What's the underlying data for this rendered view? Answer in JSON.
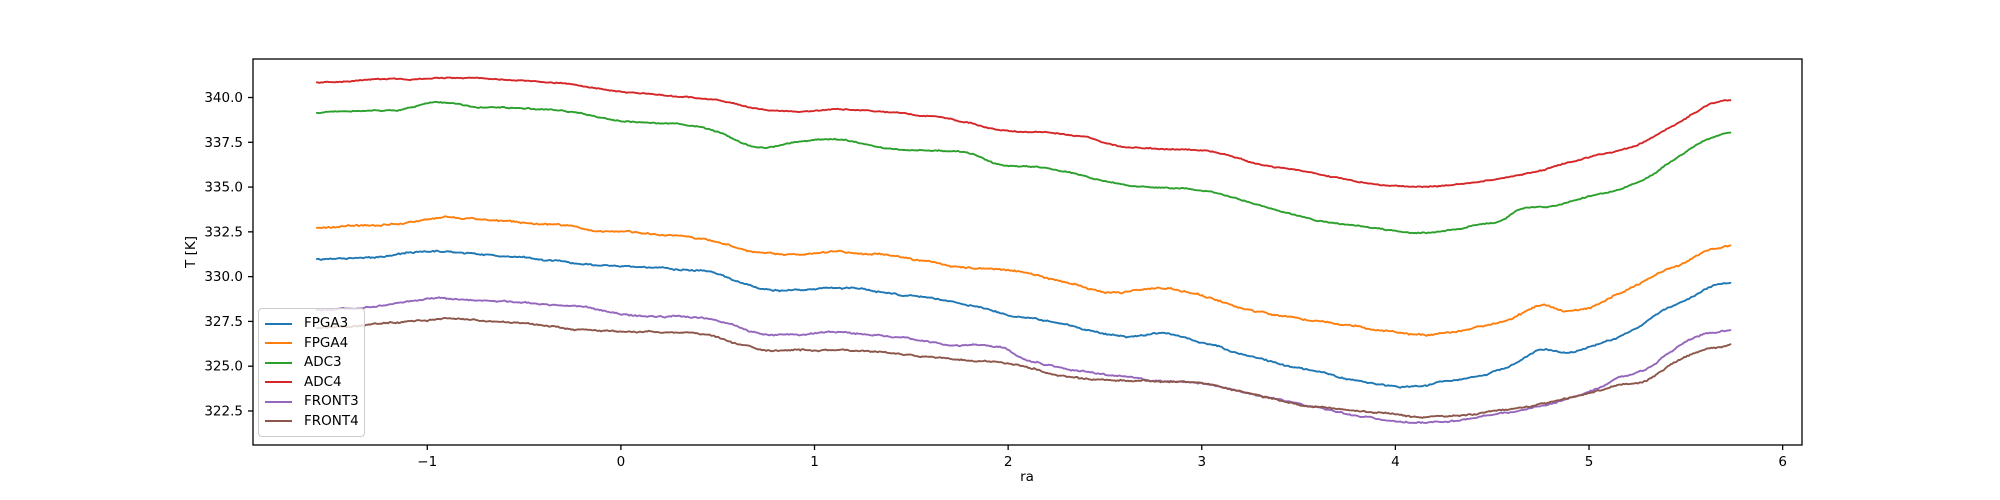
{
  "chart_data": {
    "type": "line",
    "title": "",
    "xlabel": "ra",
    "ylabel": "T [K]",
    "xlim": [
      -1.9,
      6.1
    ],
    "ylim": [
      320.6,
      342.15
    ],
    "xticks": [
      -1,
      0,
      1,
      2,
      3,
      4,
      5,
      6
    ],
    "yticks": [
      322.5,
      325.0,
      327.5,
      330.0,
      332.5,
      335.0,
      337.5,
      340.0
    ],
    "grid": false,
    "legend_position": "lower left",
    "x_data_range": [
      -1.57,
      5.73
    ],
    "axis_color": "#000000",
    "series": [
      {
        "name": "FPGA3",
        "color": "#1f77b4",
        "noise": 0.055,
        "anchors": [
          [
            -1.57,
            330.95
          ],
          [
            -1.3,
            331.1
          ],
          [
            -0.95,
            331.4
          ],
          [
            -0.65,
            331.2
          ],
          [
            -0.35,
            330.9
          ],
          [
            -0.1,
            330.6
          ],
          [
            0.15,
            330.5
          ],
          [
            0.45,
            330.25
          ],
          [
            0.7,
            329.35
          ],
          [
            0.9,
            329.2
          ],
          [
            1.1,
            329.35
          ],
          [
            1.4,
            329.1
          ],
          [
            1.7,
            328.6
          ],
          [
            2.0,
            327.9
          ],
          [
            2.3,
            327.3
          ],
          [
            2.6,
            326.65
          ],
          [
            2.8,
            326.85
          ],
          [
            3.0,
            326.35
          ],
          [
            3.3,
            325.4
          ],
          [
            3.6,
            324.65
          ],
          [
            3.85,
            324.1
          ],
          [
            4.05,
            323.9
          ],
          [
            4.25,
            324.15
          ],
          [
            4.45,
            324.5
          ],
          [
            4.6,
            325.05
          ],
          [
            4.75,
            325.9
          ],
          [
            4.87,
            325.7
          ],
          [
            5.0,
            326.0
          ],
          [
            5.2,
            326.85
          ],
          [
            5.35,
            327.9
          ],
          [
            5.5,
            328.7
          ],
          [
            5.62,
            329.4
          ],
          [
            5.73,
            329.65
          ]
        ]
      },
      {
        "name": "FPGA4",
        "color": "#ff7f0e",
        "noise": 0.06,
        "anchors": [
          [
            -1.57,
            332.7
          ],
          [
            -1.35,
            332.8
          ],
          [
            -1.15,
            332.95
          ],
          [
            -0.9,
            333.3
          ],
          [
            -0.65,
            333.1
          ],
          [
            -0.4,
            332.9
          ],
          [
            -0.15,
            332.6
          ],
          [
            0.1,
            332.45
          ],
          [
            0.45,
            332.05
          ],
          [
            0.7,
            331.4
          ],
          [
            0.9,
            331.2
          ],
          [
            1.1,
            331.35
          ],
          [
            1.4,
            331.1
          ],
          [
            1.7,
            330.6
          ],
          [
            2.0,
            330.3
          ],
          [
            2.3,
            329.7
          ],
          [
            2.55,
            329.15
          ],
          [
            2.8,
            329.3
          ],
          [
            3.0,
            328.9
          ],
          [
            3.3,
            328.0
          ],
          [
            3.6,
            327.5
          ],
          [
            3.9,
            327.05
          ],
          [
            4.15,
            326.8
          ],
          [
            4.45,
            327.2
          ],
          [
            4.62,
            327.7
          ],
          [
            4.75,
            328.4
          ],
          [
            4.87,
            328.15
          ],
          [
            5.0,
            328.3
          ],
          [
            5.15,
            329.0
          ],
          [
            5.3,
            329.85
          ],
          [
            5.45,
            330.6
          ],
          [
            5.6,
            331.4
          ],
          [
            5.73,
            331.7
          ]
        ]
      },
      {
        "name": "ADC3",
        "color": "#2ca02c",
        "noise": 0.04,
        "anchors": [
          [
            -1.57,
            339.15
          ],
          [
            -1.35,
            339.25
          ],
          [
            -1.15,
            339.3
          ],
          [
            -0.95,
            339.7
          ],
          [
            -0.75,
            339.5
          ],
          [
            -0.5,
            339.4
          ],
          [
            -0.25,
            339.2
          ],
          [
            0.0,
            338.7
          ],
          [
            0.3,
            338.55
          ],
          [
            0.5,
            338.1
          ],
          [
            0.7,
            337.25
          ],
          [
            0.9,
            337.5
          ],
          [
            1.1,
            337.7
          ],
          [
            1.35,
            337.2
          ],
          [
            1.65,
            337.05
          ],
          [
            1.8,
            336.9
          ],
          [
            1.95,
            336.25
          ],
          [
            2.15,
            336.1
          ],
          [
            2.35,
            335.75
          ],
          [
            2.55,
            335.2
          ],
          [
            2.8,
            334.95
          ],
          [
            3.05,
            334.75
          ],
          [
            3.3,
            334.0
          ],
          [
            3.6,
            333.15
          ],
          [
            3.9,
            332.7
          ],
          [
            4.15,
            332.45
          ],
          [
            4.45,
            332.9
          ],
          [
            4.55,
            333.15
          ],
          [
            4.65,
            333.8
          ],
          [
            4.8,
            333.95
          ],
          [
            5.0,
            334.45
          ],
          [
            5.15,
            334.8
          ],
          [
            5.3,
            335.5
          ],
          [
            5.45,
            336.6
          ],
          [
            5.6,
            337.6
          ],
          [
            5.73,
            338.0
          ]
        ]
      },
      {
        "name": "ADC4",
        "color": "#d62728",
        "noise": 0.04,
        "anchors": [
          [
            -1.57,
            340.85
          ],
          [
            -1.3,
            340.95
          ],
          [
            -1.0,
            341.05
          ],
          [
            -0.85,
            341.1
          ],
          [
            -0.6,
            341.0
          ],
          [
            -0.3,
            340.8
          ],
          [
            0.0,
            340.3
          ],
          [
            0.3,
            340.05
          ],
          [
            0.55,
            339.75
          ],
          [
            0.7,
            339.35
          ],
          [
            0.9,
            339.25
          ],
          [
            1.1,
            339.35
          ],
          [
            1.35,
            339.2
          ],
          [
            1.65,
            338.9
          ],
          [
            1.8,
            338.6
          ],
          [
            1.95,
            338.2
          ],
          [
            2.2,
            338.05
          ],
          [
            2.4,
            337.8
          ],
          [
            2.55,
            337.35
          ],
          [
            2.8,
            337.15
          ],
          [
            3.05,
            337.0
          ],
          [
            3.3,
            336.3
          ],
          [
            3.6,
            335.75
          ],
          [
            3.9,
            335.15
          ],
          [
            4.15,
            335.0
          ],
          [
            4.45,
            335.3
          ],
          [
            4.7,
            335.85
          ],
          [
            5.0,
            336.7
          ],
          [
            5.2,
            337.15
          ],
          [
            5.35,
            337.9
          ],
          [
            5.5,
            338.85
          ],
          [
            5.62,
            339.6
          ],
          [
            5.73,
            339.85
          ]
        ]
      },
      {
        "name": "FRONT3",
        "color": "#9467bd",
        "noise": 0.055,
        "anchors": [
          [
            -1.57,
            328.15
          ],
          [
            -1.3,
            328.3
          ],
          [
            -0.95,
            328.75
          ],
          [
            -0.7,
            328.65
          ],
          [
            -0.45,
            328.5
          ],
          [
            -0.2,
            328.3
          ],
          [
            0.05,
            327.9
          ],
          [
            0.3,
            327.8
          ],
          [
            0.55,
            327.4
          ],
          [
            0.75,
            326.7
          ],
          [
            0.95,
            326.75
          ],
          [
            1.15,
            326.9
          ],
          [
            1.45,
            326.55
          ],
          [
            1.7,
            326.15
          ],
          [
            1.95,
            326.05
          ],
          [
            2.1,
            325.35
          ],
          [
            2.4,
            324.7
          ],
          [
            2.7,
            324.25
          ],
          [
            3.0,
            324.0
          ],
          [
            3.3,
            323.35
          ],
          [
            3.6,
            322.65
          ],
          [
            3.9,
            322.05
          ],
          [
            4.1,
            321.9
          ],
          [
            4.3,
            321.95
          ],
          [
            4.5,
            322.35
          ],
          [
            4.65,
            322.55
          ],
          [
            4.8,
            322.95
          ],
          [
            5.0,
            323.55
          ],
          [
            5.15,
            324.35
          ],
          [
            5.3,
            324.9
          ],
          [
            5.45,
            326.0
          ],
          [
            5.58,
            326.7
          ],
          [
            5.73,
            327.0
          ]
        ]
      },
      {
        "name": "FRONT4",
        "color": "#8c564b",
        "noise": 0.055,
        "anchors": [
          [
            -1.57,
            327.1
          ],
          [
            -1.3,
            327.3
          ],
          [
            -0.95,
            327.6
          ],
          [
            -0.7,
            327.5
          ],
          [
            -0.4,
            327.3
          ],
          [
            -0.1,
            327.0
          ],
          [
            0.2,
            326.9
          ],
          [
            0.45,
            326.75
          ],
          [
            0.7,
            325.95
          ],
          [
            1.0,
            325.9
          ],
          [
            1.3,
            325.8
          ],
          [
            1.65,
            325.45
          ],
          [
            2.0,
            325.15
          ],
          [
            2.35,
            324.35
          ],
          [
            2.7,
            324.15
          ],
          [
            3.0,
            324.0
          ],
          [
            3.3,
            323.35
          ],
          [
            3.6,
            322.75
          ],
          [
            3.9,
            322.45
          ],
          [
            4.1,
            322.2
          ],
          [
            4.3,
            322.2
          ],
          [
            4.5,
            322.45
          ],
          [
            4.65,
            322.7
          ],
          [
            4.8,
            323.0
          ],
          [
            5.0,
            323.5
          ],
          [
            5.15,
            323.9
          ],
          [
            5.3,
            324.2
          ],
          [
            5.45,
            325.2
          ],
          [
            5.6,
            325.9
          ],
          [
            5.73,
            326.15
          ]
        ]
      }
    ]
  }
}
